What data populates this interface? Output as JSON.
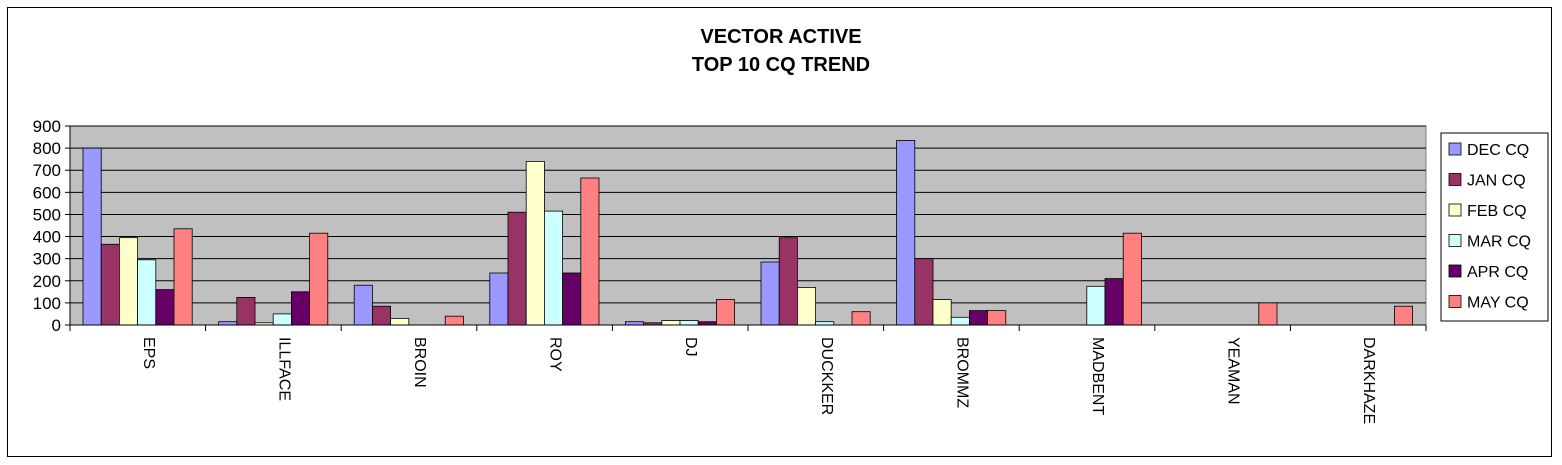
{
  "chart_data": {
    "type": "bar",
    "title": "VECTOR  ACTIVE",
    "subtitle": "TOP 10 CQ TREND",
    "xlabel": "",
    "ylabel": "",
    "ylim": [
      0,
      900
    ],
    "yticks": [
      "0",
      "100",
      "200",
      "300",
      "400",
      "500",
      "600",
      "700",
      "800",
      "900"
    ],
    "grid": true,
    "legend_position": "right",
    "plot_background": "#c0c0c0",
    "categories": [
      "EPS",
      "ILLFACE",
      "BROIN",
      "ROY",
      "DJ",
      "DUCKKER",
      "BROMMZ",
      "MADBENT",
      "YEAMAN",
      "DARKHAZE"
    ],
    "series": [
      {
        "name": "DEC CQ",
        "color": "#9999ff",
        "values": [
          800,
          15,
          180,
          235,
          15,
          285,
          835,
          0,
          0,
          0
        ]
      },
      {
        "name": "JAN CQ",
        "color": "#993366",
        "values": [
          365,
          125,
          85,
          510,
          10,
          395,
          300,
          0,
          0,
          0
        ]
      },
      {
        "name": "FEB CQ",
        "color": "#ffffcc",
        "values": [
          395,
          10,
          30,
          740,
          20,
          170,
          115,
          0,
          0,
          0
        ]
      },
      {
        "name": "MAR CQ",
        "color": "#ccffff",
        "values": [
          295,
          50,
          0,
          515,
          20,
          15,
          35,
          175,
          0,
          0
        ]
      },
      {
        "name": "APR CQ",
        "color": "#660066",
        "values": [
          160,
          150,
          0,
          235,
          15,
          0,
          65,
          210,
          0,
          0
        ]
      },
      {
        "name": "MAY CQ",
        "color": "#ff8080",
        "values": [
          435,
          415,
          40,
          665,
          115,
          60,
          65,
          415,
          100,
          85
        ]
      }
    ]
  }
}
